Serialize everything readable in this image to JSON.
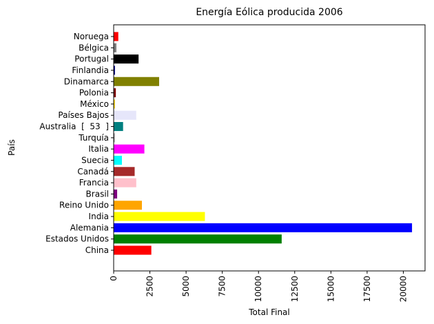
{
  "chart_data": {
    "type": "bar",
    "orientation": "horizontal",
    "title": "Energía Eólica producida 2006",
    "xlabel": "Total Final",
    "ylabel": "País",
    "xlim": [
      0,
      21500
    ],
    "x_ticks": [
      0,
      2500,
      5000,
      7500,
      10000,
      12500,
      15000,
      17500,
      20000
    ],
    "grid": false,
    "legend": "none",
    "categories": [
      "China",
      "Estados Unidos",
      "Alemania",
      "India",
      "Reino Unido",
      "Brasil",
      "Francia",
      "Canadá",
      "Suecia",
      "Italia",
      "Turquía",
      "Australia  [  53  ]",
      "Países Bajos",
      "México",
      "Polonia",
      "Dinamarca",
      "Finlandia",
      "Portugal",
      "Bélgica",
      "Noruega"
    ],
    "values": [
      2600,
      11600,
      20600,
      6300,
      1950,
      240,
      1560,
      1450,
      570,
      2120,
      65,
      650,
      1560,
      85,
      150,
      3140,
      90,
      1720,
      190,
      320
    ],
    "colors": [
      "#ff0000",
      "#008000",
      "#0000ff",
      "#ffff00",
      "#ffa500",
      "#800080",
      "#ffc0cb",
      "#a52a2a",
      "#00ffff",
      "#ff00ff",
      "#808080",
      "#008080",
      "#e6e6fa",
      "#ffd700",
      "#800000",
      "#808000",
      "#000080",
      "#000000",
      "#808080",
      "#ff0000"
    ]
  }
}
